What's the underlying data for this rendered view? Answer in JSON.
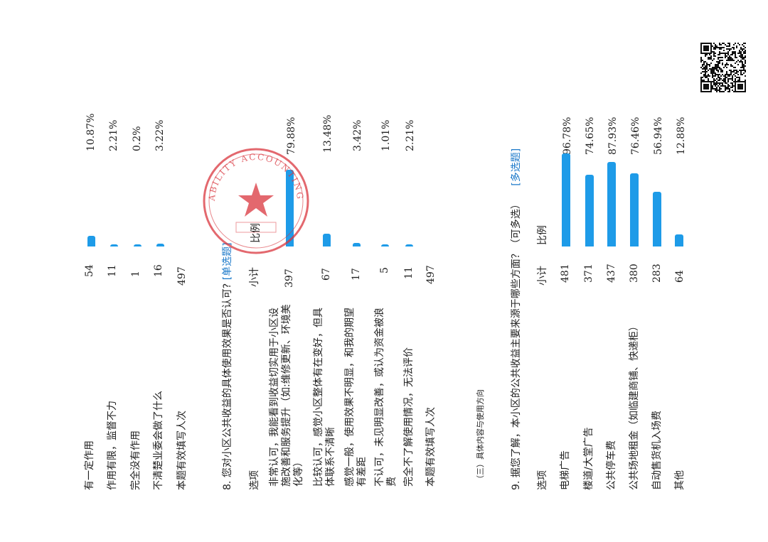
{
  "q7_rows": [
    {
      "label": "有一定作用",
      "count": "54",
      "pct": "10.87%",
      "value": 10.87
    },
    {
      "label": "作用有限，监督不力",
      "count": "11",
      "pct": "2.21%",
      "value": 2.21
    },
    {
      "label": "完全没有作用",
      "count": "1",
      "pct": "0.2%",
      "value": 0.2
    },
    {
      "label": "不清楚业委会做了什么",
      "count": "16",
      "pct": "3.22%",
      "value": 3.22
    }
  ],
  "q7_total": {
    "label": "本题有效填写人次",
    "count": "497"
  },
  "q8": {
    "title": "8. 您对小区公共收益的具体使用效果是否认可?",
    "tag": "[单选题]",
    "col_option": "选项",
    "col_count": "小计",
    "col_ratio": "比例",
    "rows": [
      {
        "label": "非常认可，我能看到收益切实用于小区设施改善和服务提升（如:维修更新、环境美化等）",
        "count": "397",
        "pct": "79.88%",
        "value": 79.88
      },
      {
        "label": "比较认可，感觉小区整体有在变好，但具体联系不清晰",
        "count": "67",
        "pct": "13.48%",
        "value": 13.48
      },
      {
        "label": "感觉一般，使用效果不明显，和我的期望有差距",
        "count": "17",
        "pct": "3.42%",
        "value": 3.42
      },
      {
        "label": "不认可，未见明显改善，或认为资金被浪费",
        "count": "5",
        "pct": "1.01%",
        "value": 1.01
      },
      {
        "label": "完全不了解使用情况，无法评价",
        "count": "11",
        "pct": "2.21%",
        "value": 2.21
      }
    ],
    "total": {
      "label": "本题有效填写人次",
      "count": "497"
    }
  },
  "section_heading": "（三）具体内容与使用方向",
  "q9": {
    "title": "9. 据您了解，本小区的公共收益主要来源于哪些方面？（可多选）",
    "tag": "[多选题]",
    "col_option": "选项",
    "col_count": "小计",
    "col_ratio": "比例",
    "rows": [
      {
        "label": "电梯广告",
        "count": "481",
        "pct": "96.78%",
        "value": 96.78
      },
      {
        "label": "楼道/大堂广告",
        "count": "371",
        "pct": "74.65%",
        "value": 74.65
      },
      {
        "label": "公共停车费",
        "count": "437",
        "pct": "87.93%",
        "value": 87.93
      },
      {
        "label": "公共场地租金（如临建商铺、快递柜）",
        "count": "380",
        "pct": "76.46%",
        "value": 76.46
      },
      {
        "label": "自动售货机入场费",
        "count": "283",
        "pct": "56.94%",
        "value": 56.94
      },
      {
        "label": "其他",
        "count": "64",
        "pct": "12.88%",
        "value": 12.88
      }
    ]
  },
  "colors": {
    "bar": "#1e9be8",
    "tag": "#1a78c9",
    "stamp": "#d9363e"
  },
  "stamp_text": "ABILITY ACCOUNTING"
}
